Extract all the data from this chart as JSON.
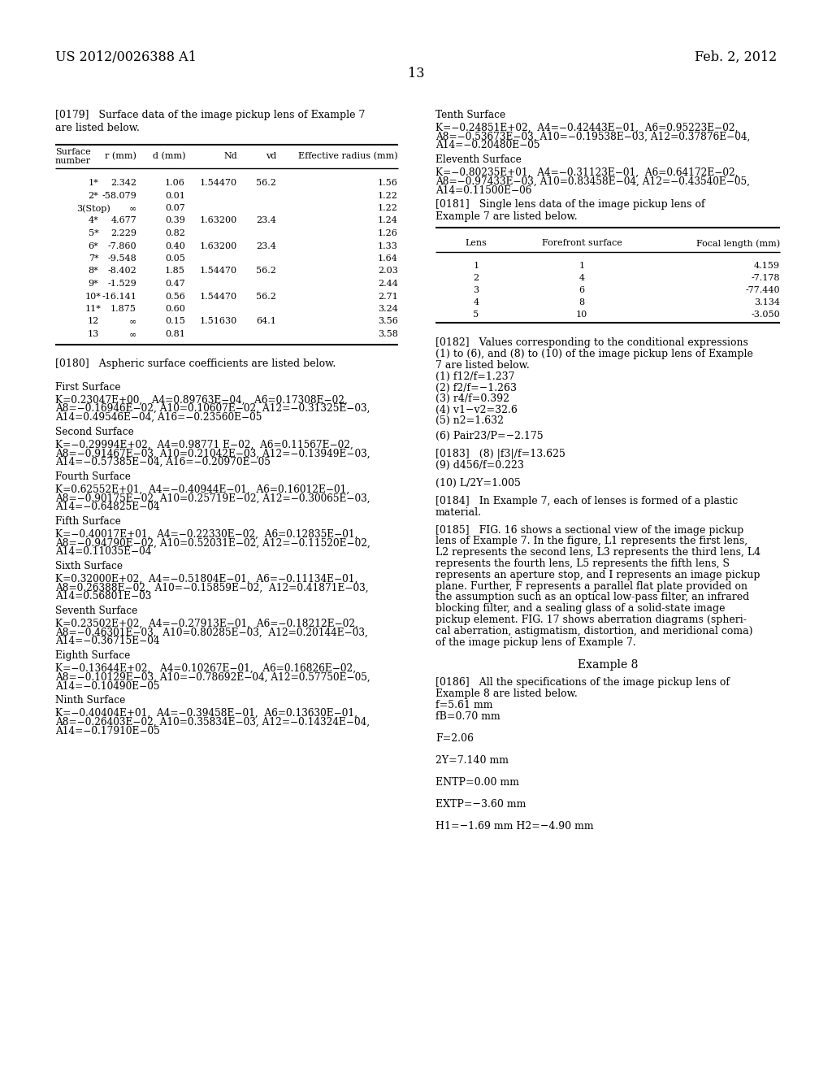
{
  "page_header_left": "US 2012/0026388 A1",
  "page_header_right": "Feb. 2, 2012",
  "page_number": "13",
  "background_color": "#ffffff",
  "table1_rows": [
    [
      "1*",
      "2.342",
      "1.06",
      "1.54470",
      "56.2",
      "1.56"
    ],
    [
      "2*",
      "-58.079",
      "0.01",
      "",
      "",
      "1.22"
    ],
    [
      "3(Stop)",
      "∞",
      "0.07",
      "",
      "",
      "1.22"
    ],
    [
      "4*",
      "4.677",
      "0.39",
      "1.63200",
      "23.4",
      "1.24"
    ],
    [
      "5*",
      "2.229",
      "0.82",
      "",
      "",
      "1.26"
    ],
    [
      "6*",
      "-7.860",
      "0.40",
      "1.63200",
      "23.4",
      "1.33"
    ],
    [
      "7*",
      "-9.548",
      "0.05",
      "",
      "",
      "1.64"
    ],
    [
      "8*",
      "-8.402",
      "1.85",
      "1.54470",
      "56.2",
      "2.03"
    ],
    [
      "9*",
      "-1.529",
      "0.47",
      "",
      "",
      "2.44"
    ],
    [
      "10*",
      "-16.141",
      "0.56",
      "1.54470",
      "56.2",
      "2.71"
    ],
    [
      "11*",
      "1.875",
      "0.60",
      "",
      "",
      "3.24"
    ],
    [
      "12",
      "∞",
      "0.15",
      "1.51630",
      "64.1",
      "3.56"
    ],
    [
      "13",
      "∞",
      "0.81",
      "",
      "",
      "3.58"
    ]
  ],
  "table2_rows": [
    [
      "1",
      "1",
      "4.159"
    ],
    [
      "2",
      "4",
      "-7.178"
    ],
    [
      "3",
      "6",
      "-77.440"
    ],
    [
      "4",
      "8",
      "3.134"
    ],
    [
      "5",
      "10",
      "-3.050"
    ]
  ],
  "conditions": [
    "(1) f12/f=1.237",
    "(2) f2/f=−1.263",
    "(3) r4/f=0.392",
    "(4) v1−v2=32.6",
    "(5) n2=1.632"
  ],
  "left_surfaces": [
    {
      "title": "First Surface",
      "lines": [
        "K=0.23047E+00,   A4=0.89763E−04,   A6=0.17308E−02,",
        "A8=−0.16946E−02, A10=0.10607E−02, A12=−0.31325E−03,",
        "A14=0.49546E−04, A16=−0.23560E−05"
      ]
    },
    {
      "title": "Second Surface",
      "lines": [
        "K=−0.29994E+02,  A4=0.98771 E−02,  A6=0.11567E−02,",
        "A8=−0.91467E−03, A10=0.21042E−03, A12=−0.13949E−03,",
        "A14=−0.57385E−04, A16=−0.20970E−05"
      ]
    },
    {
      "title": "Fourth Surface",
      "lines": [
        "K=0.62552E+01,  A4=−0.40944E−01,  A6=0.16012E−01,",
        "A8=−0.90175E−02, A10=0.25719E−02, A12=−0.30065E−03,",
        "A14=−0.64825E−04"
      ]
    },
    {
      "title": "Fifth Surface",
      "lines": [
        "K=−0.40017E+01,  A4=−0.22330E−02,  A6=0.12835E−01,",
        "A8=−0.94790E−02, A10=0.52031E−02, A12=−0.11520E−02,",
        "A14=0.11035E−04"
      ]
    },
    {
      "title": "Sixth Surface",
      "lines": [
        "K=0.32000E+02,  A4=−0.51804E−01,  A6=−0.11134E−01,",
        "A8=0.26388E−02,  A10=−0.15859E−02,  A12=0.41871E−03,",
        "A14=0.56801E−03"
      ]
    },
    {
      "title": "Seventh Surface",
      "lines": [
        "K=0.23502E+02,  A4=−0.27913E−01,  A6=−0.18212E−02,",
        "A8=−0.46301E−03,  A10=0.80285E−03,  A12=0.20144E−03,",
        "A14=−0.36715E−04"
      ]
    },
    {
      "title": "Eighth Surface",
      "lines": [
        "K=−0.13644E+02,   A4=0.10267E−01,   A6=0.16826E−02,",
        "A8=−0.10129E−03, A10=−0.78692E−04, A12=0.57750E−05,",
        "A14=−0.10490E−05"
      ]
    },
    {
      "title": "Ninth Surface",
      "lines": [
        "K=−0.40404E+01,  A4=−0.39458E−01,  A6=0.13630E−01,",
        "A8=−0.26403E−02, A10=0.35834E−03, A12=−0.14324E−04,",
        "A14=−0.17910E−05"
      ]
    }
  ],
  "right_surfaces": [
    {
      "title": "Tenth Surface",
      "lines": [
        "K=−0.24851E+02,  A4=−0.42443E−01,  A6=0.95223E−02,",
        "A8=−0.53673E−03, A10=−0.19538E−03, A12=0.37876E−04,",
        "A14=−0.20480E−05"
      ]
    },
    {
      "title": "Eleventh Surface",
      "lines": [
        "K=−0.80235E+01,  A4=−0.31123E−01,  A6=0.64172E−02,",
        "A8=−0.97433E−03, A10=0.83458E−04, A12=−0.43540E−05,",
        "A14=0.11500E−06"
      ]
    }
  ],
  "para_0185_lines": [
    "[0185]   FIG. 16 shows a sectional view of the image pickup",
    "lens of Example 7. In the figure, L1 represents the first lens,",
    "L2 represents the second lens, L3 represents the third lens, L4",
    "represents the fourth lens, L5 represents the fifth lens, S",
    "represents an aperture stop, and I represents an image pickup",
    "plane. Further, F represents a parallel flat plate provided on",
    "the assumption such as an optical low-pass filter, an infrared",
    "blocking filter, and a sealing glass of a solid-state image",
    "pickup element. FIG. 17 shows aberration diagrams (spheri-",
    "cal aberration, astigmatism, distortion, and meridional coma)",
    "of the image pickup lens of Example 7."
  ],
  "example8_specs": [
    "f=5.61 mm",
    "fB=0.70 mm",
    "",
    "F=2.06",
    "",
    "2Y=7.140 mm",
    "",
    "ENTP=0.00 mm",
    "",
    "EXTP=−3.60 mm",
    "",
    "H1=−1.69 mm H2=−4.90 mm"
  ]
}
